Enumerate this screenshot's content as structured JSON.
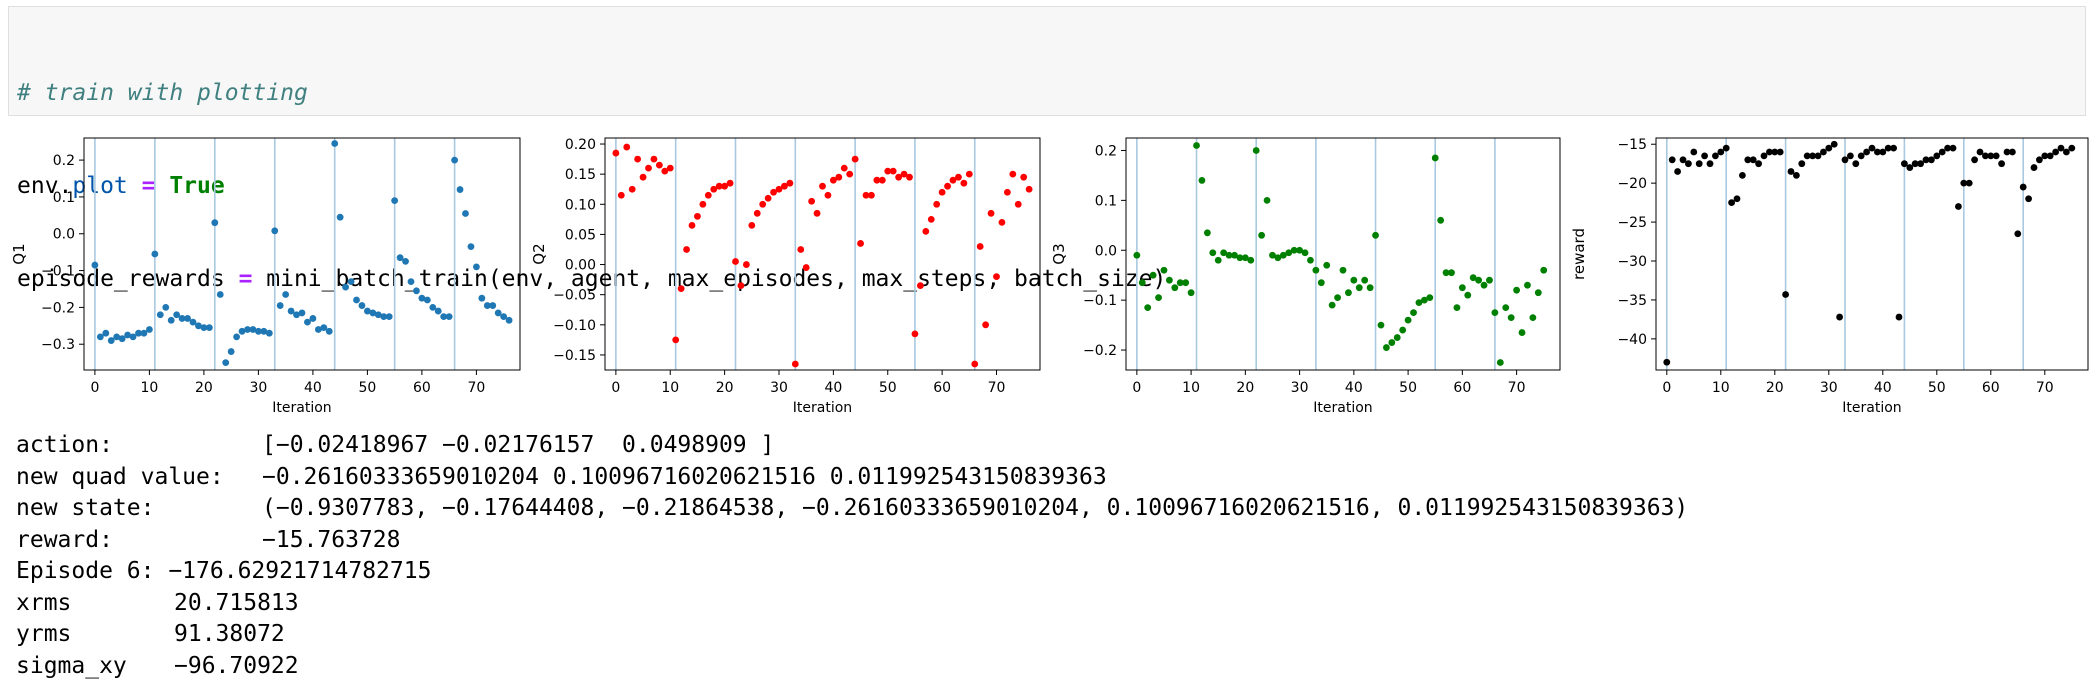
{
  "code": {
    "comment": "# train with plotting",
    "line2": {
      "obj": "env.",
      "attr": "plot",
      "op": " = ",
      "val": "True"
    },
    "line3": {
      "pre": "episode_rewards ",
      "op": "=",
      "post": " mini_batch_train(env, agent, max_episodes, max_steps, batch_size)"
    }
  },
  "plots": {
    "x_ticks": [
      0,
      10,
      20,
      30,
      40,
      50,
      60,
      70
    ],
    "xlabel": "Iteration",
    "vlines": [
      0,
      11,
      22,
      33,
      44,
      55,
      66
    ]
  },
  "chart_data": [
    {
      "type": "scatter",
      "ylabel": "Q1",
      "xlabel": "Iteration",
      "xlim": [
        -2,
        78
      ],
      "ylim": [
        -0.37,
        0.26
      ],
      "y_ticks": [
        0.2,
        0.1,
        0.0,
        -0.1,
        -0.2,
        -0.3
      ],
      "tick_labels": [
        "0.2",
        "0.1",
        "0.0",
        "−0.1",
        "−0.2",
        "−0.3"
      ],
      "color": "#1f77b4",
      "y": [
        -0.085,
        -0.28,
        -0.27,
        -0.29,
        -0.28,
        -0.285,
        -0.275,
        -0.28,
        -0.27,
        -0.27,
        -0.26,
        -0.055,
        -0.22,
        -0.2,
        -0.235,
        -0.22,
        -0.23,
        -0.23,
        -0.24,
        -0.25,
        -0.255,
        -0.255,
        0.03,
        -0.165,
        -0.35,
        -0.32,
        -0.28,
        -0.265,
        -0.26,
        -0.26,
        -0.265,
        -0.265,
        -0.27,
        0.008,
        -0.195,
        -0.165,
        -0.21,
        -0.22,
        -0.215,
        -0.24,
        -0.23,
        -0.26,
        -0.255,
        -0.265,
        0.245,
        0.045,
        -0.145,
        -0.13,
        -0.18,
        -0.195,
        -0.21,
        -0.215,
        -0.22,
        -0.225,
        -0.225,
        0.09,
        -0.065,
        -0.075,
        -0.13,
        -0.155,
        -0.175,
        -0.18,
        -0.2,
        -0.21,
        -0.225,
        -0.225,
        0.2,
        0.12,
        0.055,
        -0.035,
        -0.09,
        -0.175,
        -0.195,
        -0.195,
        -0.215,
        -0.225,
        -0.235
      ]
    },
    {
      "type": "scatter",
      "ylabel": "Q2",
      "xlabel": "Iteration",
      "xlim": [
        -2,
        78
      ],
      "ylim": [
        -0.175,
        0.21
      ],
      "y_ticks": [
        0.2,
        0.15,
        0.1,
        0.05,
        0.0,
        -0.05,
        -0.1,
        -0.15
      ],
      "tick_labels": [
        "0.20",
        "0.15",
        "0.10",
        "0.05",
        "0.00",
        "−0.05",
        "−0.10",
        "−0.15"
      ],
      "color": "#ff0000",
      "y": [
        0.185,
        0.115,
        0.195,
        0.125,
        0.175,
        0.145,
        0.16,
        0.175,
        0.165,
        0.155,
        0.16,
        -0.125,
        -0.04,
        0.025,
        0.065,
        0.08,
        0.1,
        0.115,
        0.125,
        0.13,
        0.13,
        0.135,
        0.005,
        -0.035,
        0.0,
        0.065,
        0.085,
        0.1,
        0.11,
        0.12,
        0.125,
        0.13,
        0.135,
        -0.165,
        0.025,
        -0.005,
        0.105,
        0.085,
        0.13,
        0.115,
        0.14,
        0.145,
        0.16,
        0.15,
        0.175,
        0.035,
        0.115,
        0.115,
        0.14,
        0.14,
        0.155,
        0.155,
        0.145,
        0.15,
        0.145,
        -0.115,
        -0.035,
        0.055,
        0.075,
        0.1,
        0.12,
        0.13,
        0.14,
        0.145,
        0.135,
        0.15,
        -0.165,
        0.03,
        -0.1,
        0.085,
        -0.02,
        0.07,
        0.12,
        0.15,
        0.1,
        0.145,
        0.125
      ]
    },
    {
      "type": "scatter",
      "ylabel": "Q3",
      "xlabel": "Iteration",
      "xlim": [
        -2,
        78
      ],
      "ylim": [
        -0.24,
        0.225
      ],
      "y_ticks": [
        0.2,
        0.1,
        0.0,
        -0.1,
        -0.2
      ],
      "tick_labels": [
        "0.2",
        "0.1",
        "0.0",
        "−0.1",
        "−0.2"
      ],
      "color": "#008000",
      "y": [
        -0.01,
        -0.065,
        -0.115,
        -0.05,
        -0.095,
        -0.04,
        -0.06,
        -0.075,
        -0.065,
        -0.065,
        -0.085,
        0.21,
        0.14,
        0.035,
        -0.005,
        -0.02,
        -0.005,
        -0.01,
        -0.01,
        -0.015,
        -0.015,
        -0.02,
        0.2,
        0.03,
        0.1,
        -0.01,
        -0.015,
        -0.01,
        -0.005,
        0.0,
        0.0,
        -0.005,
        -0.02,
        -0.04,
        -0.065,
        -0.03,
        -0.11,
        -0.095,
        -0.04,
        -0.085,
        -0.06,
        -0.075,
        -0.06,
        -0.075,
        0.03,
        -0.15,
        -0.195,
        -0.185,
        -0.175,
        -0.16,
        -0.14,
        -0.125,
        -0.105,
        -0.1,
        -0.095,
        0.185,
        0.06,
        -0.045,
        -0.045,
        -0.115,
        -0.075,
        -0.09,
        -0.055,
        -0.06,
        -0.07,
        -0.06,
        -0.125,
        -0.225,
        -0.115,
        -0.135,
        -0.08,
        -0.165,
        -0.07,
        -0.135,
        -0.085,
        -0.04
      ]
    },
    {
      "type": "scatter",
      "ylabel": "reward",
      "xlabel": "Iteration",
      "xlim": [
        -2,
        78
      ],
      "ylim": [
        -44,
        -14.2
      ],
      "y_ticks": [
        -15,
        -20,
        -25,
        -30,
        -35,
        -40
      ],
      "tick_labels": [
        "−15",
        "−20",
        "−25",
        "−30",
        "−35",
        "−40"
      ],
      "color": "#000000",
      "y": [
        -43,
        -17.0,
        -18.5,
        -17.0,
        -17.5,
        -16.0,
        -17.5,
        -16.5,
        -17.5,
        -16.5,
        -16.0,
        -15.5,
        -22.5,
        -22.0,
        -19.0,
        -17.0,
        -17.0,
        -17.5,
        -16.5,
        -16.0,
        -16.0,
        -16.0,
        -34.3,
        -18.5,
        -19.0,
        -17.5,
        -16.5,
        -16.5,
        -16.5,
        -16.0,
        -15.5,
        -15.0,
        -37.2,
        -17.0,
        -16.5,
        -17.5,
        -16.5,
        -16.0,
        -15.5,
        -16.0,
        -16.0,
        -15.5,
        -15.5,
        -37.2,
        -17.5,
        -18.0,
        -17.5,
        -17.5,
        -17.0,
        -17.0,
        -16.5,
        -16.0,
        -15.5,
        -15.5,
        -23.0,
        -20.0,
        -20.0,
        -17.0,
        -16.0,
        -16.5,
        -16.5,
        -16.5,
        -17.5,
        -16.0,
        -16.0,
        -26.5,
        -20.5,
        -22.0,
        -18.0,
        -17.0,
        -16.5,
        -16.5,
        -16.0,
        -15.5,
        -16.0,
        -15.5
      ]
    }
  ],
  "output": [
    {
      "key": "action:",
      "val": "[−0.02418967 −0.02176157  0.0498909 ]",
      "w": "k1"
    },
    {
      "key": "new quad value:",
      "val": "−0.26160333659010204 0.10096716020621516 0.011992543150839363",
      "w": "k1"
    },
    {
      "key": "new state:",
      "val": "(−0.9307783, −0.17644408, −0.21864538, −0.26160333659010204, 0.10096716020621516, 0.011992543150839363)",
      "w": "k1"
    },
    {
      "key": "reward:",
      "val": "−15.763728",
      "w": "k1"
    },
    {
      "key": "Episode 6:",
      "val": " −176.62921714782715",
      "w": "none"
    },
    {
      "key": "xrms",
      "val": "20.715813",
      "w": "k2"
    },
    {
      "key": "yrms",
      "val": "91.38072",
      "w": "k2"
    },
    {
      "key": "sigma_xy",
      "val": "−96.70922",
      "w": "k2"
    }
  ]
}
